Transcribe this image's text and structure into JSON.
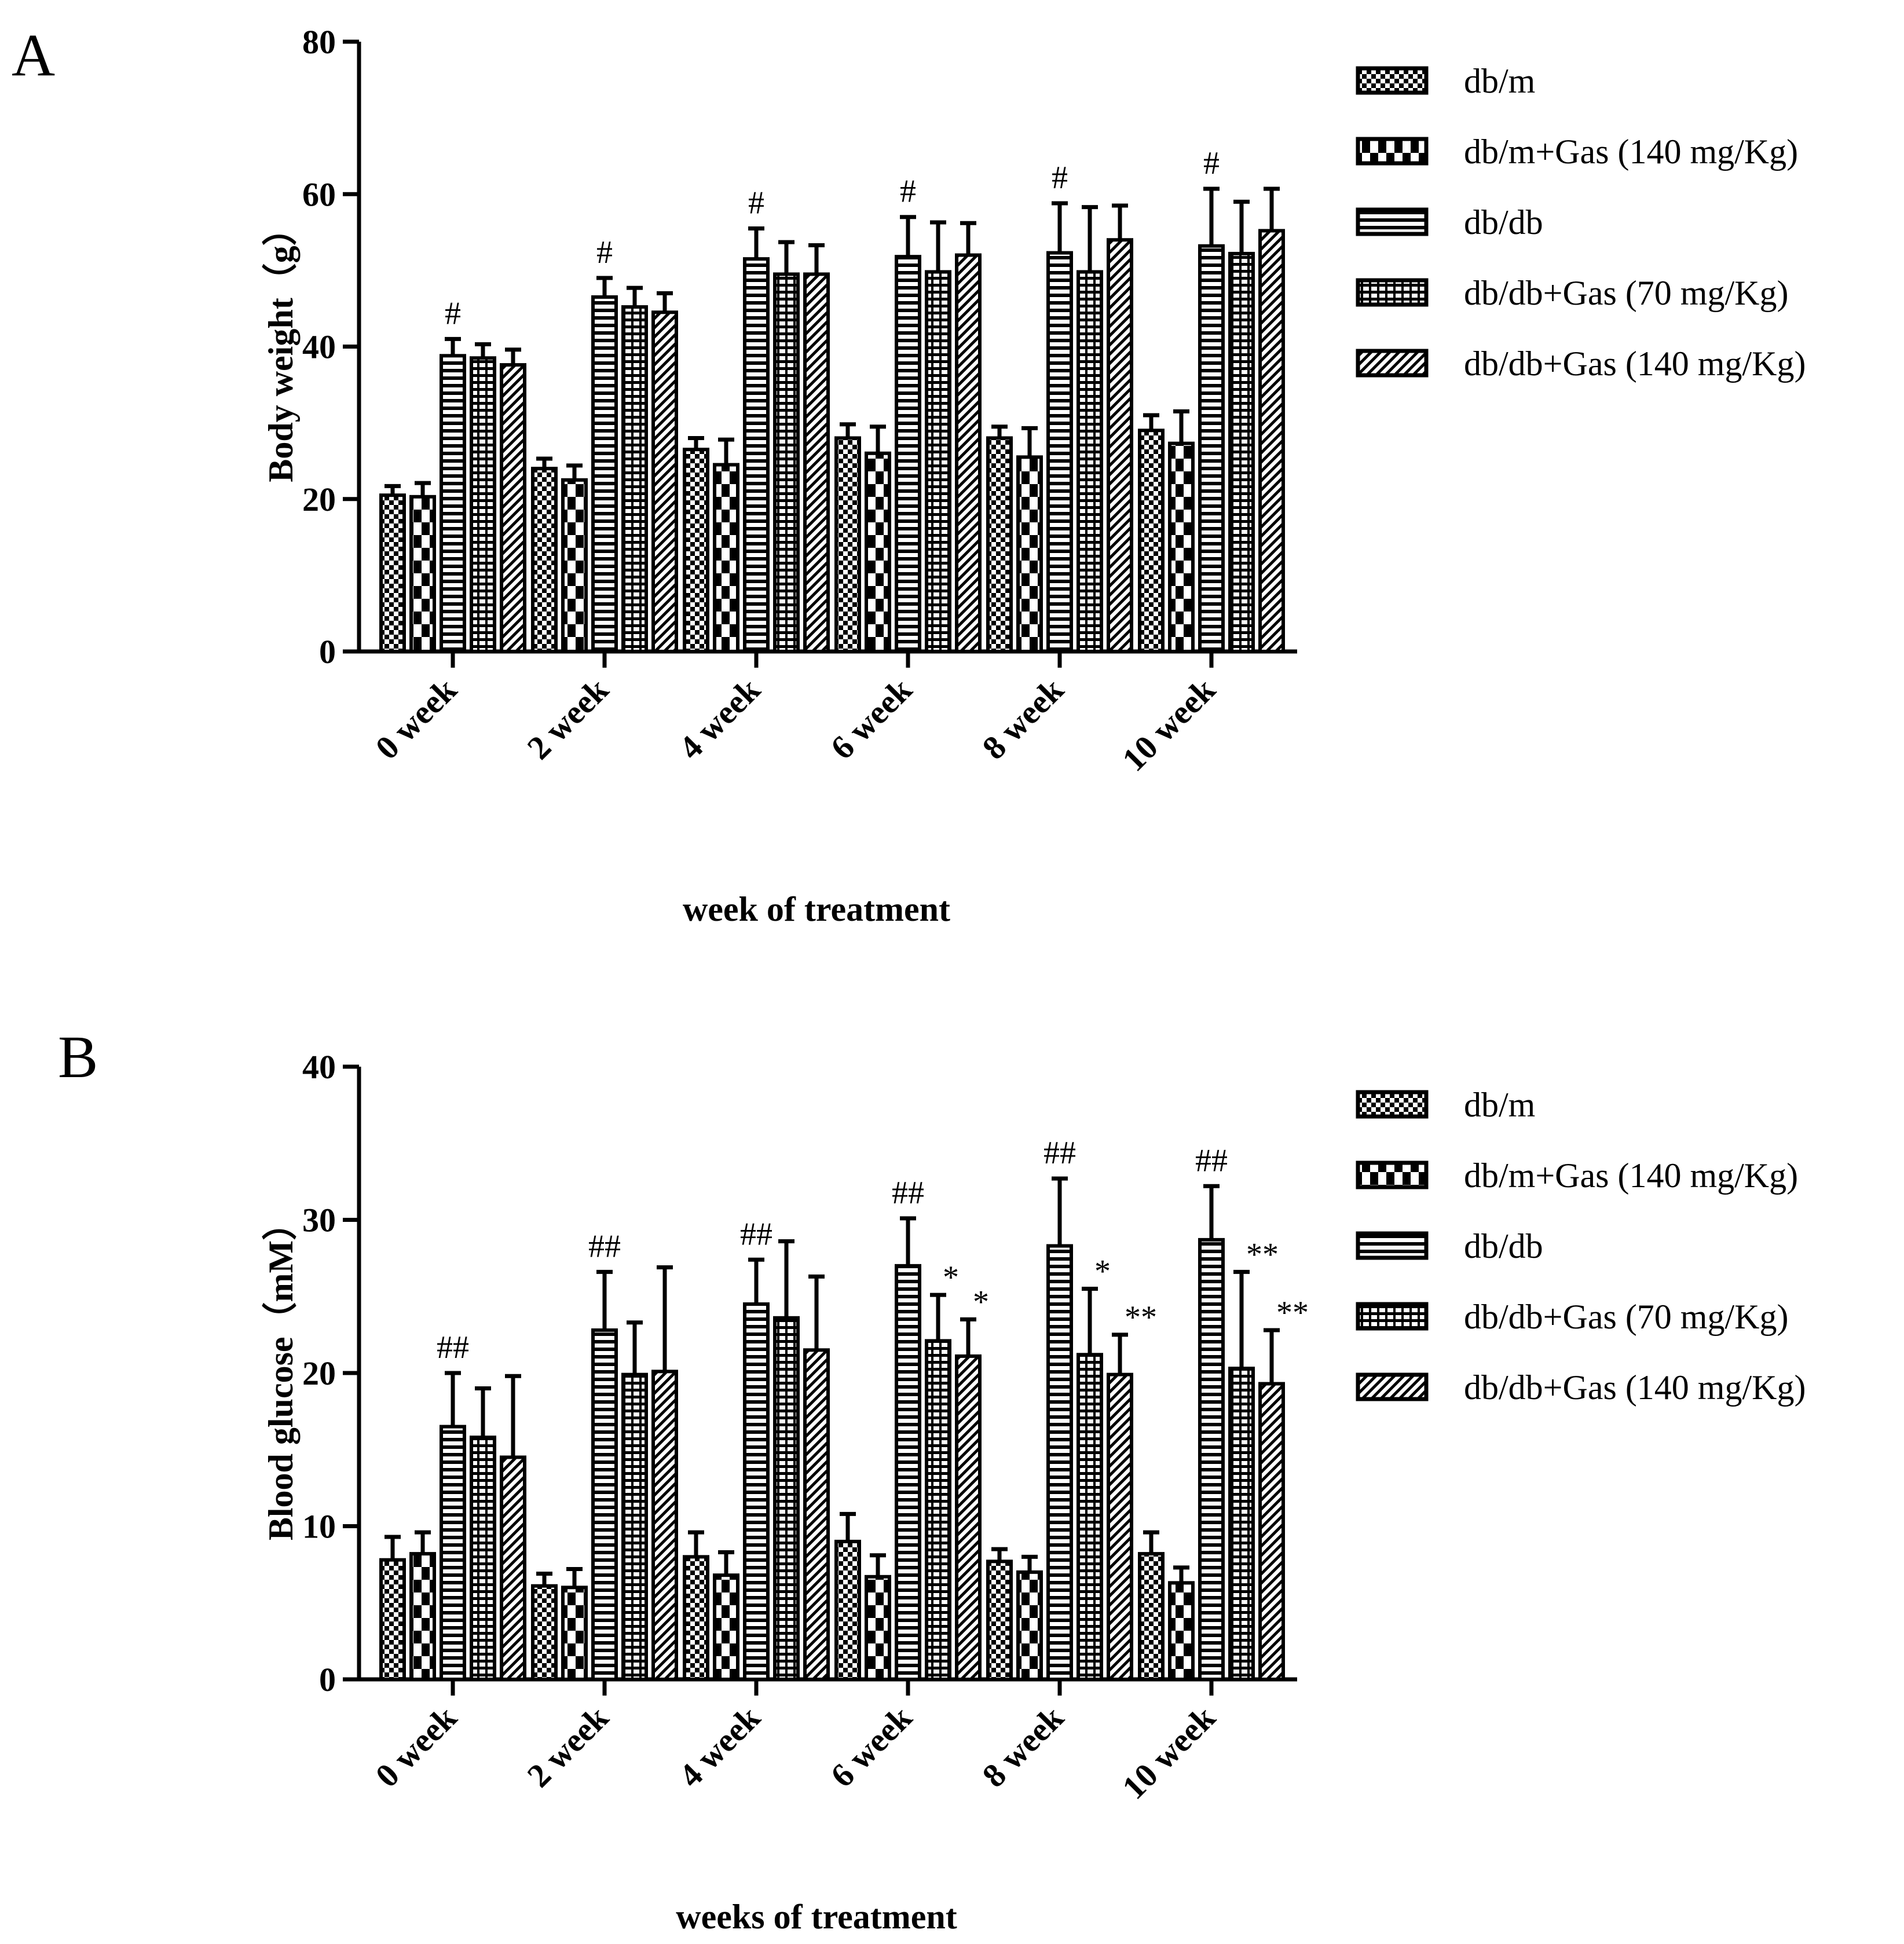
{
  "panel_labels": [
    "A",
    "B"
  ],
  "legend": {
    "entries": [
      "db/m",
      "db/m+Gas (140 mg/Kg)",
      "db/db",
      "db/db+Gas (70 mg/Kg)",
      "db/db+Gas (140 mg/Kg)"
    ]
  },
  "colors": {
    "ink": "#000000",
    "paper": "#ffffff"
  },
  "chart_data": [
    {
      "type": "bar",
      "panel": "A",
      "title": "",
      "xlabel": "week of treatment",
      "ylabel": "Body weight（g）",
      "ylim": [
        0,
        80
      ],
      "yticks": [
        "0",
        "20",
        "40",
        "60",
        "80"
      ],
      "categories": [
        "0 week",
        "2 week",
        "4 week",
        "6 week",
        "8 week",
        "10 week"
      ],
      "legend_position": "right",
      "series": [
        {
          "name": "db/m",
          "values": [
            20.5,
            24.0,
            26.5,
            28.0,
            28.0,
            29.0
          ],
          "errors": [
            1.2,
            1.3,
            1.5,
            1.8,
            1.5,
            2.0
          ]
        },
        {
          "name": "db/m+Gas (140 mg/Kg)",
          "values": [
            20.3,
            22.5,
            24.5,
            26.0,
            25.5,
            27.3
          ],
          "errors": [
            1.8,
            1.9,
            3.3,
            3.5,
            3.8,
            4.2
          ]
        },
        {
          "name": "db/db",
          "values": [
            38.8,
            46.5,
            51.5,
            51.8,
            52.3,
            53.2
          ],
          "errors": [
            2.2,
            2.5,
            4.0,
            5.2,
            6.5,
            7.5
          ]
        },
        {
          "name": "db/db+Gas (70 mg/Kg)",
          "values": [
            38.5,
            45.2,
            49.5,
            49.8,
            49.8,
            52.2
          ],
          "errors": [
            1.8,
            2.5,
            4.2,
            6.5,
            8.5,
            6.8
          ]
        },
        {
          "name": "db/db+Gas (140 mg/Kg)",
          "values": [
            37.6,
            44.5,
            49.5,
            52.0,
            54.0,
            55.2
          ],
          "errors": [
            2.0,
            2.5,
            3.8,
            4.2,
            4.5,
            5.5
          ]
        }
      ],
      "annotations": [
        {
          "category": 0,
          "series": 2,
          "text": "#"
        },
        {
          "category": 1,
          "series": 2,
          "text": "#"
        },
        {
          "category": 2,
          "series": 2,
          "text": "#"
        },
        {
          "category": 3,
          "series": 2,
          "text": "#"
        },
        {
          "category": 4,
          "series": 2,
          "text": "#"
        },
        {
          "category": 5,
          "series": 2,
          "text": "#"
        }
      ]
    },
    {
      "type": "bar",
      "panel": "B",
      "title": "",
      "xlabel": "weeks of treatment",
      "ylabel": "Blood glucose（mM）",
      "ylim": [
        0,
        40
      ],
      "yticks": [
        "0",
        "10",
        "20",
        "30",
        "40"
      ],
      "categories": [
        "0 week",
        "2 week",
        "4 week",
        "6 week",
        "8 week",
        "10 week"
      ],
      "legend_position": "right",
      "series": [
        {
          "name": "db/m",
          "values": [
            7.8,
            6.1,
            8.0,
            9.0,
            7.7,
            8.2
          ],
          "errors": [
            1.5,
            0.8,
            1.6,
            1.8,
            0.8,
            1.4
          ]
        },
        {
          "name": "db/m+Gas (140 mg/Kg)",
          "values": [
            8.2,
            6.0,
            6.8,
            6.7,
            7.0,
            6.3
          ],
          "errors": [
            1.4,
            1.2,
            1.5,
            1.4,
            1.0,
            1.0
          ]
        },
        {
          "name": "db/db",
          "values": [
            16.5,
            22.8,
            24.5,
            27.0,
            28.3,
            28.7
          ],
          "errors": [
            3.5,
            3.8,
            2.9,
            3.1,
            4.4,
            3.5
          ]
        },
        {
          "name": "db/db+Gas (70 mg/Kg)",
          "values": [
            15.8,
            19.9,
            23.6,
            22.1,
            21.2,
            20.3
          ],
          "errors": [
            3.2,
            3.4,
            5.0,
            3.0,
            4.3,
            6.3
          ]
        },
        {
          "name": "db/db+Gas (140 mg/Kg)",
          "values": [
            14.5,
            20.1,
            21.5,
            21.1,
            19.9,
            19.3
          ],
          "errors": [
            5.3,
            6.8,
            4.8,
            2.4,
            2.6,
            3.5
          ]
        }
      ],
      "annotations": [
        {
          "category": 0,
          "series": 2,
          "text": "##"
        },
        {
          "category": 1,
          "series": 2,
          "text": "##"
        },
        {
          "category": 2,
          "series": 2,
          "text": "##"
        },
        {
          "category": 3,
          "series": 2,
          "text": "##"
        },
        {
          "category": 4,
          "series": 2,
          "text": "##"
        },
        {
          "category": 5,
          "series": 2,
          "text": "##"
        },
        {
          "category": 3,
          "series": 3,
          "text": "*"
        },
        {
          "category": 3,
          "series": 4,
          "text": "*"
        },
        {
          "category": 4,
          "series": 3,
          "text": "*"
        },
        {
          "category": 4,
          "series": 4,
          "text": "**"
        },
        {
          "category": 5,
          "series": 3,
          "text": "**"
        },
        {
          "category": 5,
          "series": 4,
          "text": "**"
        }
      ]
    }
  ]
}
